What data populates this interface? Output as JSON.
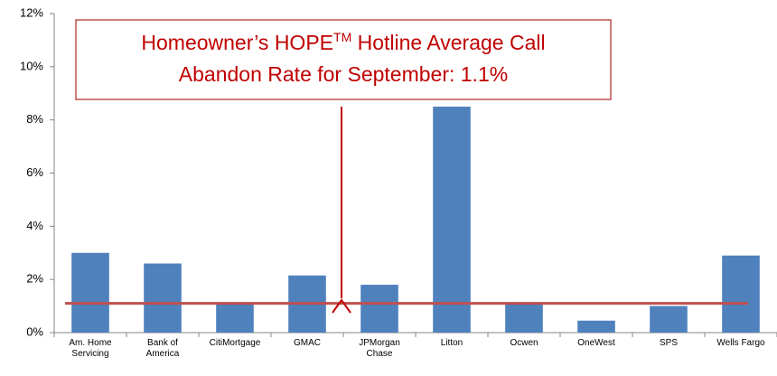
{
  "chart_data": {
    "type": "bar",
    "categories": [
      "Am. Home Servicing",
      "Bank of America",
      "CitiMortgage",
      "GMAC",
      "JPMorgan Chase",
      "Litton",
      "Ocwen",
      "OneWest",
      "SPS",
      "Wells Fargo"
    ],
    "values": [
      3.0,
      2.6,
      1.1,
      2.15,
      1.8,
      8.5,
      1.1,
      0.45,
      1.0,
      2.9
    ],
    "color": "#4f81bd",
    "average": {
      "value": 1.1,
      "color": "#c0504d"
    },
    "annotation": {
      "before": "Homeowner’s HOPE",
      "superscript": "TM",
      "after": " Hotline Average Call",
      "line2": "Abandon Rate for September: 1.1%"
    },
    "ylim": [
      0,
      12
    ],
    "yticks": [
      {
        "value": 0,
        "label": "0%"
      },
      {
        "value": 2,
        "label": "2%"
      },
      {
        "value": 4,
        "label": "4%"
      },
      {
        "value": 6,
        "label": "6%"
      },
      {
        "value": 8,
        "label": "8%"
      },
      {
        "value": 10,
        "label": "10%"
      },
      {
        "value": 12,
        "label": "12%"
      }
    ],
    "grid": false
  }
}
